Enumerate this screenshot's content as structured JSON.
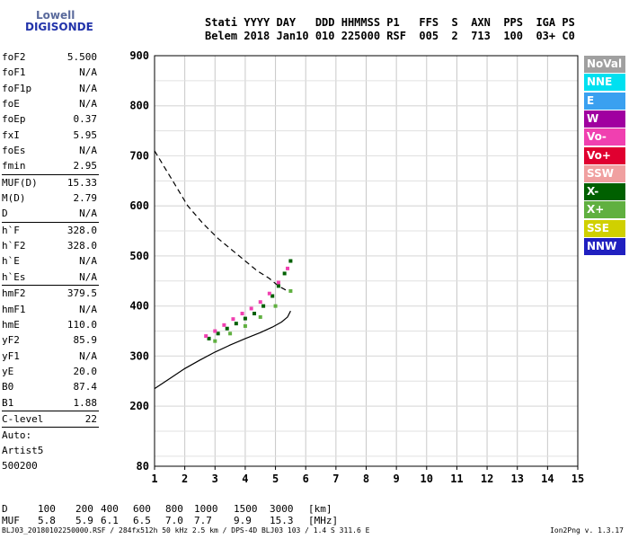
{
  "logo": {
    "line1": "Lowell",
    "line2": "DIGISONDE"
  },
  "header": {
    "line1": "Stati YYYY DAY   DDD HHMMSS P1   FFS  S  AXN  PPS  IGA PS",
    "line2": "Belem 2018 Jan10 010 225000 RSF  005  2  713  100  03+ C0"
  },
  "params": [
    {
      "k": "foF2",
      "v": "5.500"
    },
    {
      "k": "foF1",
      "v": "N/A"
    },
    {
      "k": "foF1p",
      "v": "N/A"
    },
    {
      "k": "foE",
      "v": "N/A"
    },
    {
      "k": "foEp",
      "v": "0.37"
    },
    {
      "k": "fxI",
      "v": "5.95"
    },
    {
      "k": "foEs",
      "v": "N/A"
    },
    {
      "k": "fmin",
      "v": "2.95",
      "sep": true
    },
    {
      "k": "MUF(D)",
      "v": "15.33"
    },
    {
      "k": "M(D)",
      "v": "2.79"
    },
    {
      "k": "D",
      "v": "N/A",
      "sep": true
    },
    {
      "k": "h`F",
      "v": "328.0"
    },
    {
      "k": "h`F2",
      "v": "328.0"
    },
    {
      "k": "h`E",
      "v": "N/A"
    },
    {
      "k": "h`Es",
      "v": "N/A",
      "sep": true
    },
    {
      "k": "hmF2",
      "v": "379.5"
    },
    {
      "k": "hmF1",
      "v": "N/A"
    },
    {
      "k": "hmE",
      "v": "110.0"
    },
    {
      "k": "yF2",
      "v": "85.9"
    },
    {
      "k": "yF1",
      "v": "N/A"
    },
    {
      "k": "yE",
      "v": "20.0"
    },
    {
      "k": "B0",
      "v": "87.4"
    },
    {
      "k": "B1",
      "v": "1.88",
      "sep": true
    },
    {
      "k": "C-level",
      "v": "22",
      "sep": true
    }
  ],
  "auto": {
    "l1": "Auto:",
    "l2": "Artist5",
    "l3": "500200"
  },
  "dmuf": {
    "d_label": "D",
    "muf_label": "MUF",
    "d_values": [
      "100",
      "200",
      "400",
      "600",
      "800",
      "1000",
      "1500",
      "3000"
    ],
    "d_unit": "[km]",
    "muf_values": [
      "5.8",
      "5.9",
      "6.1",
      "6.5",
      "7.0",
      "7.7",
      "9.9",
      "15.3"
    ],
    "muf_unit": "[MHz]"
  },
  "footer": "BLJ03_20180102250000.RSF / 284fx512h 50 kHz 2.5 km / DPS-4D BLJ03 103 / 1.4 S 311.6 E",
  "version": "Ion2Png v. 1.3.17",
  "legend": [
    {
      "label": "NoVal",
      "color": "#a0a0a0"
    },
    {
      "label": "NNE",
      "color": "#00e0f0"
    },
    {
      "label": "E",
      "color": "#3aa0f0"
    },
    {
      "label": "W",
      "color": "#a000a0"
    },
    {
      "label": "Vo-",
      "color": "#f040b0"
    },
    {
      "label": "Vo+",
      "color": "#e00030"
    },
    {
      "label": "SSW",
      "color": "#f0a0a0"
    },
    {
      "label": "X-",
      "color": "#006000"
    },
    {
      "label": "X+",
      "color": "#60b040"
    },
    {
      "label": "SSE",
      "color": "#d0d000"
    },
    {
      "label": "NNW",
      "color": "#2020c0"
    }
  ],
  "chart_data": {
    "type": "scatter",
    "xlim": [
      1,
      15
    ],
    "ylim": [
      80,
      900
    ],
    "x_ticks": [
      "1",
      "2",
      "3",
      "4",
      "5",
      "6",
      "7",
      "8",
      "9",
      "10",
      "11",
      "12",
      "13",
      "14",
      "15"
    ],
    "y_ticks": [
      "80",
      "200",
      "300",
      "400",
      "500",
      "600",
      "700",
      "800",
      "900"
    ],
    "y_tick_values": [
      80,
      200,
      300,
      400,
      500,
      600,
      700,
      800,
      900
    ],
    "grid": true,
    "profile_dashed": {
      "x": [
        1.0,
        1.3,
        1.7,
        2.1,
        2.6,
        3.1,
        3.6,
        4.0,
        4.4,
        4.8,
        5.1,
        5.4
      ],
      "y": [
        710,
        680,
        640,
        600,
        565,
        535,
        510,
        490,
        470,
        455,
        440,
        430
      ]
    },
    "profile_solid": {
      "x": [
        1.0,
        1.5,
        2.0,
        2.5,
        3.0,
        3.5,
        4.0,
        4.5,
        4.9,
        5.2,
        5.4,
        5.5
      ],
      "y": [
        235,
        255,
        275,
        292,
        308,
        322,
        335,
        347,
        358,
        368,
        378,
        390
      ]
    },
    "traces": [
      {
        "name": "X-",
        "x": [
          2.8,
          3.1,
          3.4,
          3.7,
          4.0,
          4.3,
          4.6,
          4.9,
          5.1,
          5.3,
          5.5
        ],
        "y": [
          335,
          345,
          355,
          365,
          375,
          385,
          400,
          420,
          440,
          465,
          490
        ]
      },
      {
        "name": "Vo-",
        "x": [
          2.7,
          3.0,
          3.3,
          3.6,
          3.9,
          4.2,
          4.5,
          4.8,
          5.1,
          5.4
        ],
        "y": [
          340,
          350,
          362,
          374,
          385,
          395,
          408,
          425,
          447,
          475
        ]
      },
      {
        "name": "X+",
        "x": [
          3.0,
          3.5,
          4.0,
          4.5,
          5.0,
          5.5
        ],
        "y": [
          330,
          345,
          360,
          378,
          400,
          430
        ]
      }
    ]
  }
}
